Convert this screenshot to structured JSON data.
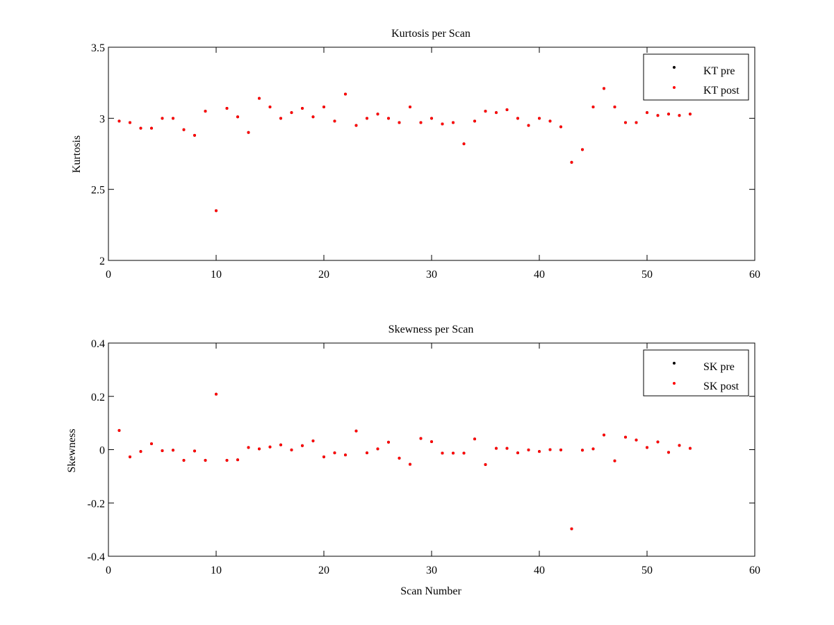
{
  "chart_data": [
    {
      "type": "scatter",
      "title": "Kurtosis per Scan",
      "xlabel": "",
      "ylabel": "Kurtosis",
      "xlim": [
        0,
        60
      ],
      "ylim": [
        2,
        3.5
      ],
      "xticks": [
        "0",
        "10",
        "20",
        "30",
        "40",
        "50",
        "60"
      ],
      "yticks": [
        "2",
        "2.5",
        "3",
        "3.5"
      ],
      "grid": false,
      "legend_position": "top-right",
      "legend": [
        {
          "name": "KT pre",
          "color": "#000000"
        },
        {
          "name": "KT post",
          "color": "#ff0000"
        }
      ],
      "x": [
        1,
        2,
        3,
        4,
        5,
        6,
        7,
        8,
        9,
        10,
        11,
        12,
        13,
        14,
        15,
        16,
        17,
        18,
        19,
        20,
        21,
        22,
        23,
        24,
        25,
        26,
        27,
        28,
        29,
        30,
        31,
        32,
        33,
        34,
        35,
        36,
        37,
        38,
        39,
        40,
        41,
        42,
        43,
        44,
        45,
        46,
        47,
        48,
        49,
        50,
        51,
        52,
        53,
        54
      ],
      "series": [
        {
          "name": "KT pre",
          "color": "#000000",
          "values": [
            2.98,
            2.97,
            2.93,
            2.93,
            3.0,
            3.0,
            2.92,
            2.88,
            3.05,
            2.35,
            3.07,
            3.01,
            2.9,
            3.14,
            3.08,
            3.0,
            3.04,
            3.07,
            3.01,
            3.08,
            2.98,
            3.17,
            2.95,
            3.0,
            3.03,
            3.0,
            2.97,
            3.08,
            2.97,
            3.0,
            2.96,
            2.97,
            2.82,
            2.98,
            3.05,
            3.04,
            3.06,
            3.0,
            2.95,
            3.0,
            2.98,
            2.94,
            2.69,
            2.78,
            3.08,
            3.21,
            3.08,
            2.97,
            2.97,
            3.04,
            3.02,
            3.03,
            3.02,
            3.03
          ]
        },
        {
          "name": "KT post",
          "color": "#ff0000",
          "values": [
            2.98,
            2.97,
            2.93,
            2.93,
            3.0,
            3.0,
            2.92,
            2.88,
            3.05,
            2.35,
            3.07,
            3.01,
            2.9,
            3.14,
            3.08,
            3.0,
            3.04,
            3.07,
            3.01,
            3.08,
            2.98,
            3.17,
            2.95,
            3.0,
            3.03,
            3.0,
            2.97,
            3.08,
            2.97,
            3.0,
            2.96,
            2.97,
            2.82,
            2.98,
            3.05,
            3.04,
            3.06,
            3.0,
            2.95,
            3.0,
            2.98,
            2.94,
            2.69,
            2.78,
            3.08,
            3.21,
            3.08,
            2.97,
            2.97,
            3.04,
            3.02,
            3.03,
            3.02,
            3.03
          ]
        }
      ]
    },
    {
      "type": "scatter",
      "title": "Skewness per Scan",
      "xlabel": "Scan Number",
      "ylabel": "Skewness",
      "xlim": [
        0,
        60
      ],
      "ylim": [
        -0.4,
        0.4
      ],
      "xticks": [
        "0",
        "10",
        "20",
        "30",
        "40",
        "50",
        "60"
      ],
      "yticks": [
        "-0.4",
        "-0.2",
        "0",
        "0.2",
        "0.4"
      ],
      "grid": false,
      "legend_position": "top-right",
      "legend": [
        {
          "name": "SK pre",
          "color": "#000000"
        },
        {
          "name": "SK post",
          "color": "#ff0000"
        }
      ],
      "x": [
        1,
        2,
        3,
        4,
        5,
        6,
        7,
        8,
        9,
        10,
        11,
        12,
        13,
        14,
        15,
        16,
        17,
        18,
        19,
        20,
        21,
        22,
        23,
        24,
        25,
        26,
        27,
        28,
        29,
        30,
        31,
        32,
        33,
        34,
        35,
        36,
        37,
        38,
        39,
        40,
        41,
        42,
        43,
        44,
        45,
        46,
        47,
        48,
        49,
        50,
        51,
        52,
        53,
        54
      ],
      "series": [
        {
          "name": "SK pre",
          "color": "#000000",
          "values": [
            0.072,
            -0.027,
            -0.007,
            0.022,
            -0.004,
            -0.002,
            -0.04,
            -0.005,
            -0.04,
            0.208,
            -0.04,
            -0.038,
            0.008,
            0.003,
            0.01,
            0.018,
            -0.001,
            0.015,
            0.033,
            -0.027,
            -0.012,
            -0.02,
            0.07,
            -0.012,
            0.003,
            0.028,
            -0.032,
            -0.055,
            0.042,
            0.03,
            -0.013,
            -0.013,
            -0.013,
            0.04,
            -0.056,
            0.005,
            0.005,
            -0.012,
            -0.001,
            -0.007,
            0.0,
            -0.001,
            -0.297,
            -0.002,
            0.003,
            0.055,
            -0.042,
            0.047,
            0.036,
            0.008,
            0.029,
            -0.01,
            0.016,
            0.005
          ]
        },
        {
          "name": "SK post",
          "color": "#ff0000",
          "values": [
            0.072,
            -0.027,
            -0.007,
            0.022,
            -0.004,
            -0.002,
            -0.04,
            -0.005,
            -0.04,
            0.208,
            -0.04,
            -0.038,
            0.008,
            0.003,
            0.01,
            0.018,
            -0.001,
            0.015,
            0.033,
            -0.027,
            -0.012,
            -0.02,
            0.07,
            -0.012,
            0.003,
            0.028,
            -0.032,
            -0.055,
            0.042,
            0.03,
            -0.013,
            -0.013,
            -0.013,
            0.04,
            -0.056,
            0.005,
            0.005,
            -0.012,
            -0.001,
            -0.007,
            0.0,
            -0.001,
            -0.297,
            -0.002,
            0.003,
            0.055,
            -0.042,
            0.047,
            0.036,
            0.008,
            0.029,
            -0.01,
            0.016,
            0.005
          ]
        }
      ]
    }
  ]
}
